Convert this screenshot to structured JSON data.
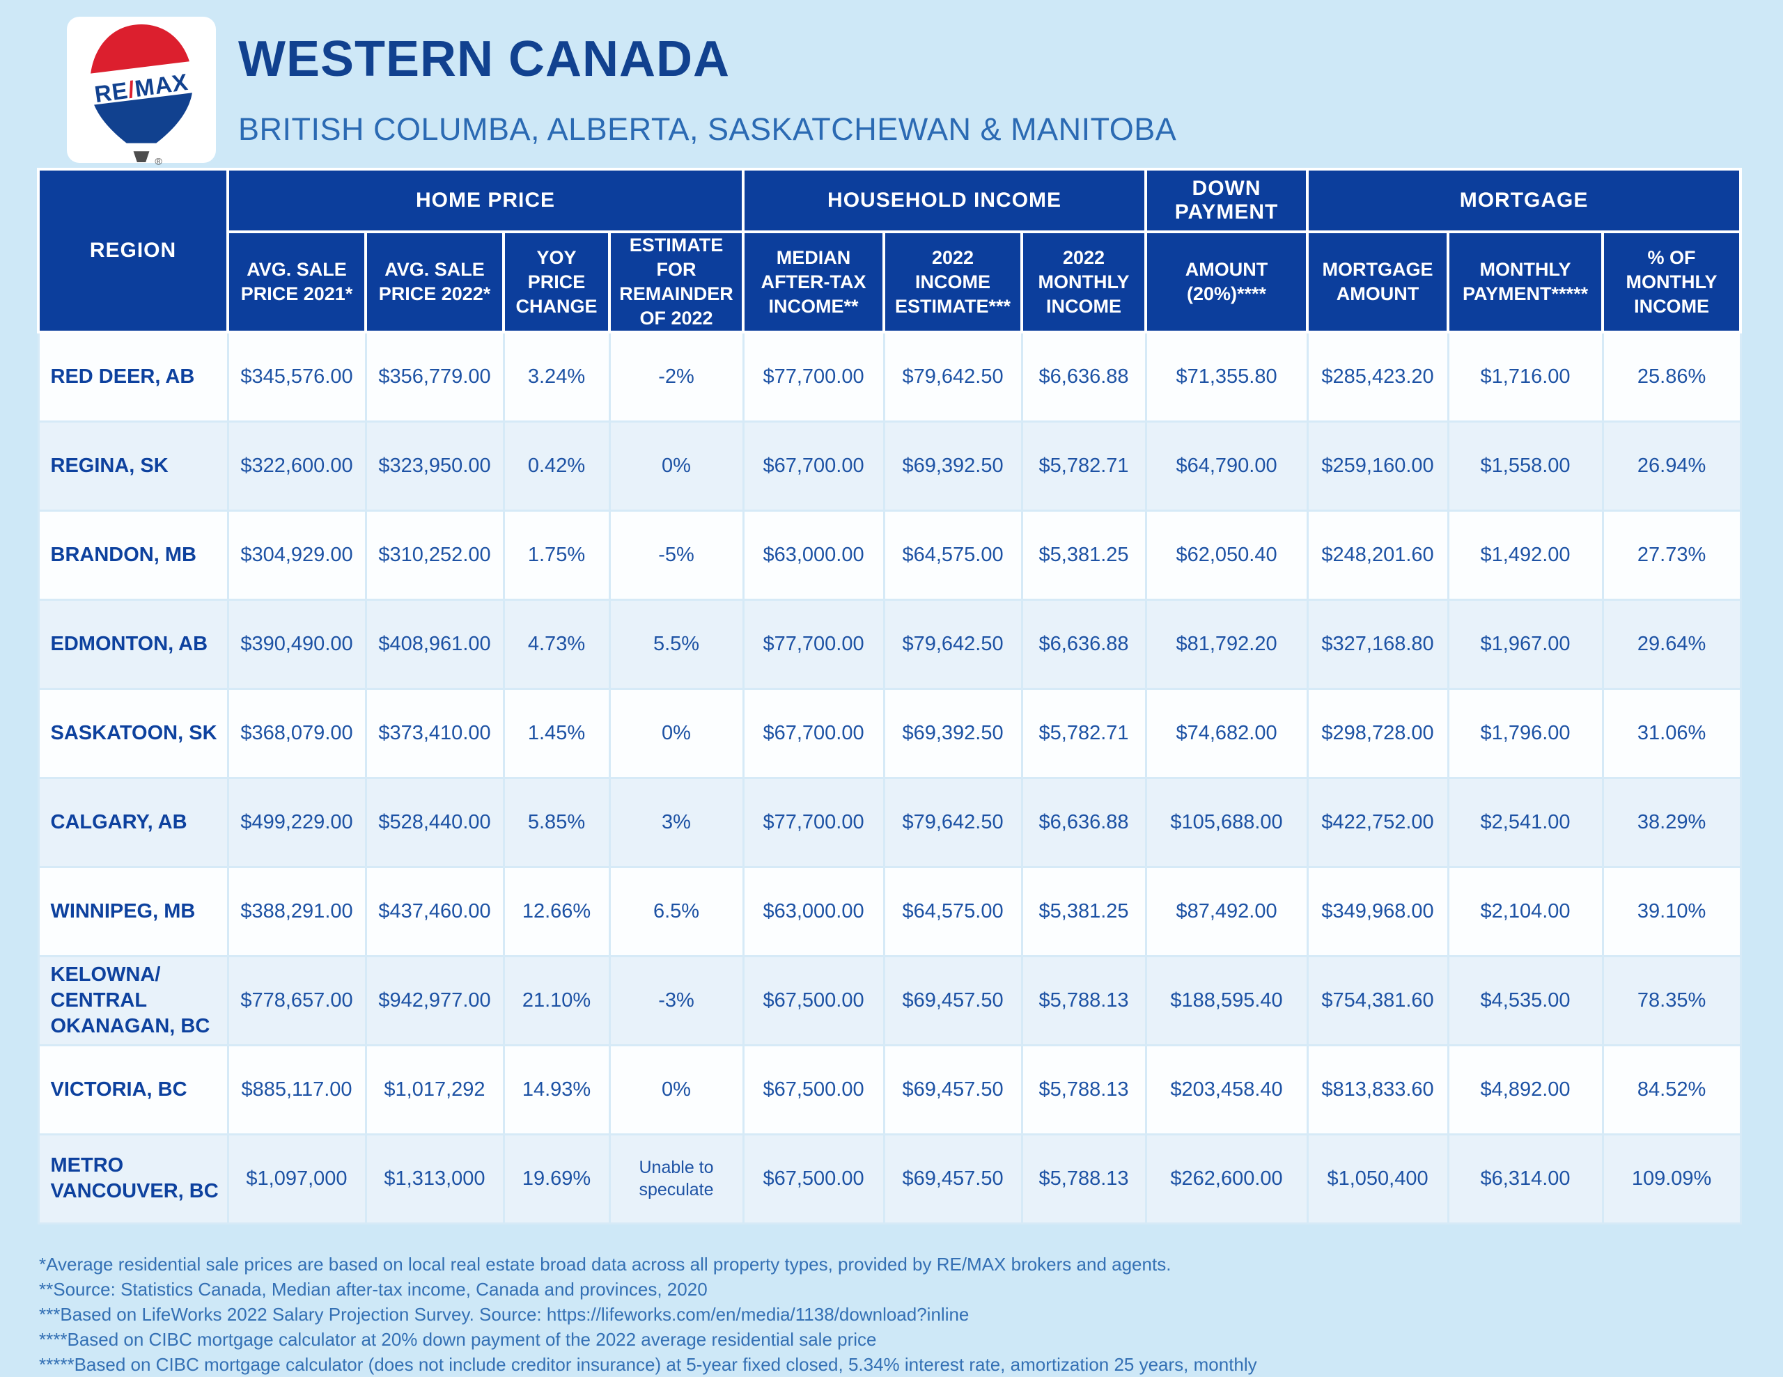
{
  "header": {
    "title": "WESTERN CANADA",
    "subtitle": "BRITISH COLUMBA, ALBERTA, SASKATCHEWAN & MANITOBA",
    "logo_text": "RE/MAX",
    "logo_slash": "/",
    "registered_mark": "®"
  },
  "table": {
    "region_header": "REGION",
    "groups": [
      {
        "label": "HOME PRICE"
      },
      {
        "label": "HOUSEHOLD INCOME"
      },
      {
        "label": "DOWN PAYMENT"
      },
      {
        "label": "MORTGAGE"
      }
    ],
    "columns": [
      "AVG. SALE PRICE 2021*",
      "AVG. SALE PRICE 2022*",
      "YOY PRICE CHANGE",
      "ESTIMATE FOR REMAINDER OF 2022",
      "MEDIAN AFTER-TAX INCOME**",
      "2022 INCOME ESTIMATE***",
      "2022 MONTHLY INCOME",
      "AMOUNT (20%)****",
      "MORTGAGE AMOUNT",
      "MONTHLY PAYMENT*****",
      "% OF MONTHLY INCOME"
    ],
    "rows": [
      {
        "region": "RED DEER, AB",
        "values": [
          "$345,576.00",
          "$356,779.00",
          "3.24%",
          "-2%",
          "$77,700.00",
          "$79,642.50",
          "$6,636.88",
          "$71,355.80",
          "$285,423.20",
          "$1,716.00",
          "25.86%"
        ]
      },
      {
        "region": "REGINA, SK",
        "values": [
          "$322,600.00",
          "$323,950.00",
          "0.42%",
          "0%",
          "$67,700.00",
          "$69,392.50",
          "$5,782.71",
          "$64,790.00",
          "$259,160.00",
          "$1,558.00",
          "26.94%"
        ]
      },
      {
        "region": "BRANDON, MB",
        "values": [
          "$304,929.00",
          "$310,252.00",
          "1.75%",
          "-5%",
          "$63,000.00",
          "$64,575.00",
          "$5,381.25",
          "$62,050.40",
          "$248,201.60",
          "$1,492.00",
          "27.73%"
        ]
      },
      {
        "region": "EDMONTON, AB",
        "values": [
          "$390,490.00",
          "$408,961.00",
          "4.73%",
          "5.5%",
          "$77,700.00",
          "$79,642.50",
          "$6,636.88",
          "$81,792.20",
          "$327,168.80",
          "$1,967.00",
          "29.64%"
        ]
      },
      {
        "region": "SASKATOON, SK",
        "values": [
          "$368,079.00",
          "$373,410.00",
          "1.45%",
          "0%",
          "$67,700.00",
          "$69,392.50",
          "$5,782.71",
          "$74,682.00",
          "$298,728.00",
          "$1,796.00",
          "31.06%"
        ]
      },
      {
        "region": "CALGARY, AB",
        "values": [
          "$499,229.00",
          "$528,440.00",
          "5.85%",
          "3%",
          "$77,700.00",
          "$79,642.50",
          "$6,636.88",
          "$105,688.00",
          "$422,752.00",
          "$2,541.00",
          "38.29%"
        ]
      },
      {
        "region": "WINNIPEG, MB",
        "values": [
          "$388,291.00",
          "$437,460.00",
          "12.66%",
          "6.5%",
          "$63,000.00",
          "$64,575.00",
          "$5,381.25",
          "$87,492.00",
          "$349,968.00",
          "$2,104.00",
          "39.10%"
        ]
      },
      {
        "region": "KELOWNA/ CENTRAL OKANAGAN, BC",
        "values": [
          "$778,657.00",
          "$942,977.00",
          "21.10%",
          "-3%",
          "$67,500.00",
          "$69,457.50",
          "$5,788.13",
          "$188,595.40",
          "$754,381.60",
          "$4,535.00",
          "78.35%"
        ]
      },
      {
        "region": "VICTORIA, BC",
        "values": [
          "$885,117.00",
          "$1,017,292",
          "14.93%",
          "0%",
          "$67,500.00",
          "$69,457.50",
          "$5,788.13",
          "$203,458.40",
          "$813,833.60",
          "$4,892.00",
          "84.52%"
        ]
      },
      {
        "region": "METRO VANCOUVER, BC",
        "values": [
          "$1,097,000",
          "$1,313,000",
          "19.69%",
          "Unable to speculate",
          "$67,500.00",
          "$69,457.50",
          "$5,788.13",
          "$262,600.00",
          "$1,050,400",
          "$6,314.00",
          "109.09%"
        ]
      }
    ]
  },
  "footnotes": [
    "*Average residential sale prices are based on local real estate broad data across all property types, provided by RE/MAX brokers and agents.",
    "**Source: Statistics Canada, Median after-tax income, Canada and provinces, 2020",
    "***Based on LifeWorks 2022 Salary Projection Survey. Source: https://lifeworks.com/en/media/1138/download?inline",
    "****Based on CIBC mortgage calculator at 20% down payment of the 2022 average residential sale price",
    "*****Based on CIBC mortgage calculator (does not include creditor insurance) at 5-year fixed closed, 5.34% interest rate, amortization 25 years, monthly"
  ],
  "colors": {
    "page_background": "#cee8f7",
    "header_blue": "#0c3e9c",
    "title_blue": "#11418f",
    "subtitle_blue": "#2b6ab3",
    "value_text_blue": "#1d52a4",
    "row_alt_blue": "#e8f2fa",
    "logo_red": "#dc1f2e",
    "logo_blue": "#11418f"
  },
  "chart_data": {
    "type": "table",
    "title": "WESTERN CANADA",
    "subtitle": "BRITISH COLUMBA, ALBERTA, SASKATCHEWAN & MANITOBA",
    "column_groups": [
      "HOME PRICE",
      "HOUSEHOLD INCOME",
      "DOWN PAYMENT",
      "MORTGAGE"
    ],
    "columns": [
      "REGION",
      "AVG. SALE PRICE 2021*",
      "AVG. SALE PRICE 2022*",
      "YOY PRICE CHANGE",
      "ESTIMATE FOR REMAINDER OF 2022",
      "MEDIAN AFTER-TAX INCOME**",
      "2022 INCOME ESTIMATE***",
      "2022 MONTHLY INCOME",
      "AMOUNT (20%)****",
      "MORTGAGE AMOUNT",
      "MONTHLY PAYMENT*****",
      "% OF MONTHLY INCOME"
    ],
    "rows": [
      [
        "RED DEER, AB",
        "$345,576.00",
        "$356,779.00",
        "3.24%",
        "-2%",
        "$77,700.00",
        "$79,642.50",
        "$6,636.88",
        "$71,355.80",
        "$285,423.20",
        "$1,716.00",
        "25.86%"
      ],
      [
        "REGINA, SK",
        "$322,600.00",
        "$323,950.00",
        "0.42%",
        "0%",
        "$67,700.00",
        "$69,392.50",
        "$5,782.71",
        "$64,790.00",
        "$259,160.00",
        "$1,558.00",
        "26.94%"
      ],
      [
        "BRANDON, MB",
        "$304,929.00",
        "$310,252.00",
        "1.75%",
        "-5%",
        "$63,000.00",
        "$64,575.00",
        "$5,381.25",
        "$62,050.40",
        "$248,201.60",
        "$1,492.00",
        "27.73%"
      ],
      [
        "EDMONTON, AB",
        "$390,490.00",
        "$408,961.00",
        "4.73%",
        "5.5%",
        "$77,700.00",
        "$79,642.50",
        "$6,636.88",
        "$81,792.20",
        "$327,168.80",
        "$1,967.00",
        "29.64%"
      ],
      [
        "SASKATOON, SK",
        "$368,079.00",
        "$373,410.00",
        "1.45%",
        "0%",
        "$67,700.00",
        "$69,392.50",
        "$5,782.71",
        "$74,682.00",
        "$298,728.00",
        "$1,796.00",
        "31.06%"
      ],
      [
        "CALGARY, AB",
        "$499,229.00",
        "$528,440.00",
        "5.85%",
        "3%",
        "$77,700.00",
        "$79,642.50",
        "$6,636.88",
        "$105,688.00",
        "$422,752.00",
        "$2,541.00",
        "38.29%"
      ],
      [
        "WINNIPEG, MB",
        "$388,291.00",
        "$437,460.00",
        "12.66%",
        "6.5%",
        "$63,000.00",
        "$64,575.00",
        "$5,381.25",
        "$87,492.00",
        "$349,968.00",
        "$2,104.00",
        "39.10%"
      ],
      [
        "KELOWNA/ CENTRAL OKANAGAN, BC",
        "$778,657.00",
        "$942,977.00",
        "21.10%",
        "-3%",
        "$67,500.00",
        "$69,457.50",
        "$5,788.13",
        "$188,595.40",
        "$754,381.60",
        "$4,535.00",
        "78.35%"
      ],
      [
        "VICTORIA, BC",
        "$885,117.00",
        "$1,017,292",
        "14.93%",
        "0%",
        "$67,500.00",
        "$69,457.50",
        "$5,788.13",
        "$203,458.40",
        "$813,833.60",
        "$4,892.00",
        "84.52%"
      ],
      [
        "METRO VANCOUVER, BC",
        "$1,097,000",
        "$1,313,000",
        "19.69%",
        "Unable to speculate",
        "$67,500.00",
        "$69,457.50",
        "$5,788.13",
        "$262,600.00",
        "$1,050,400",
        "$6,314.00",
        "109.09%"
      ]
    ]
  }
}
